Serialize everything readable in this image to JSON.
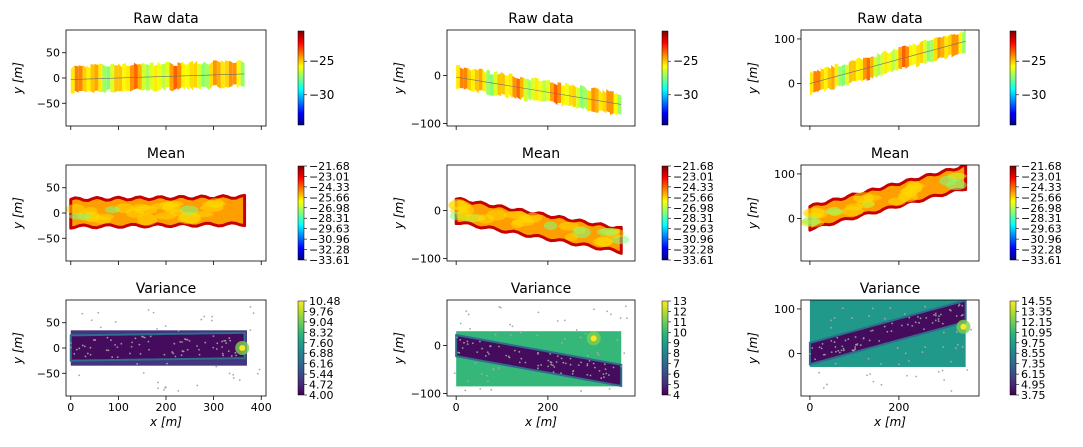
{
  "colors": {
    "jet": [
      "#00007f",
      "#0000ff",
      "#007fff",
      "#00ffff",
      "#7fff7f",
      "#ffff00",
      "#ff7f00",
      "#ff0000",
      "#7f0000"
    ],
    "viridis": [
      "#440154",
      "#482878",
      "#3e4989",
      "#31688e",
      "#26828e",
      "#1f9e89",
      "#35b779",
      "#6ece58",
      "#b5de2b",
      "#fde725"
    ],
    "axes": "#000000"
  },
  "chart_data": [
    {
      "type": "scatter",
      "row": "raw",
      "col": 0,
      "title": "Raw data",
      "xlabel": "",
      "ylabel": "y [m]",
      "xlim": [
        -10,
        410
      ],
      "ylim": [
        -95,
        95
      ],
      "xticks": [
        0,
        100,
        200,
        300,
        400
      ],
      "show_xticklabels": false,
      "yticks": [
        -50,
        0,
        50
      ],
      "ytick_labels": [
        "−50",
        "0",
        "50"
      ],
      "colormap": "jet",
      "clim": [
        -34.5,
        -20.5
      ],
      "colorbar_ticks": [
        -25,
        -30
      ],
      "colorbar_labels": [
        "−25",
        "−30"
      ],
      "track": {
        "x_start": 0,
        "x_end": 365,
        "center_start": -3,
        "center_end": 8,
        "half_width": 25
      },
      "field_value_min": -27.5,
      "field_value_max": -23.5
    },
    {
      "type": "scatter",
      "row": "raw",
      "col": 1,
      "title": "Raw data",
      "xlabel": "",
      "ylabel": "y [m]",
      "xlim": [
        -20,
        390
      ],
      "ylim": [
        -105,
        95
      ],
      "xticks": [
        0,
        200
      ],
      "show_xticklabels": false,
      "yticks": [
        -100,
        0
      ],
      "ytick_labels": [
        "−100",
        "0"
      ],
      "colormap": "jet",
      "clim": [
        -34.5,
        -20.5
      ],
      "colorbar_ticks": [
        -25,
        -30
      ],
      "colorbar_labels": [
        "−25",
        "−30"
      ],
      "track": {
        "x_start": 0,
        "x_end": 360,
        "center_start": -3,
        "center_end": -60,
        "half_width": 22
      },
      "field_value_min": -27.5,
      "field_value_max": -23.5
    },
    {
      "type": "scatter",
      "row": "raw",
      "col": 2,
      "title": "Raw data",
      "xlabel": "",
      "ylabel": "y [m]",
      "xlim": [
        -20,
        380
      ],
      "ylim": [
        -95,
        120
      ],
      "xticks": [
        0,
        200
      ],
      "show_xticklabels": false,
      "yticks": [
        0,
        100
      ],
      "ytick_labels": [
        "0",
        "100"
      ],
      "colormap": "jet",
      "clim": [
        -34.5,
        -20.5
      ],
      "colorbar_ticks": [
        -25,
        -30
      ],
      "colorbar_labels": [
        "−25",
        "−30"
      ],
      "track": {
        "x_start": 0,
        "x_end": 350,
        "center_start": 0,
        "center_end": 95,
        "half_width": 24
      },
      "field_value_min": -27.5,
      "field_value_max": -23.5
    },
    {
      "type": "heatmap",
      "row": "mean",
      "col": 0,
      "title": "Mean",
      "xlabel": "",
      "ylabel": "y [m]",
      "xlim": [
        -10,
        410
      ],
      "ylim": [
        -95,
        95
      ],
      "xticks": [
        0,
        100,
        200,
        300,
        400
      ],
      "show_xticklabels": false,
      "yticks": [
        -50,
        0,
        50
      ],
      "ytick_labels": [
        "−50",
        "0",
        "50"
      ],
      "colormap": "jet",
      "clim": [
        -33.61,
        -21.68
      ],
      "colorbar_ticks": [
        -21.68,
        -23.01,
        -24.33,
        -25.66,
        -26.98,
        -28.31,
        -29.63,
        -30.96,
        -32.28,
        -33.61
      ],
      "colorbar_labels": [
        "−21.68",
        "−23.01",
        "−24.33",
        "−25.66",
        "−26.98",
        "−28.31",
        "−29.63",
        "−30.96",
        "−32.28",
        "−33.61"
      ],
      "track": {
        "x_start": 0,
        "x_end": 365,
        "center_start": 0,
        "center_end": 5,
        "half_width": 27
      }
    },
    {
      "type": "heatmap",
      "row": "mean",
      "col": 1,
      "title": "Mean",
      "xlabel": "",
      "ylabel": "y [m]",
      "xlim": [
        -20,
        390
      ],
      "ylim": [
        -105,
        95
      ],
      "xticks": [
        0,
        200
      ],
      "show_xticklabels": false,
      "yticks": [
        -100,
        0
      ],
      "ytick_labels": [
        "−100",
        "0"
      ],
      "colormap": "jet",
      "clim": [
        -33.61,
        -21.68
      ],
      "colorbar_ticks": [
        -21.68,
        -23.01,
        -24.33,
        -25.66,
        -26.98,
        -28.31,
        -29.63,
        -30.96,
        -32.28,
        -33.61
      ],
      "colorbar_labels": [
        "−21.68",
        "−23.01",
        "−24.33",
        "−25.66",
        "−26.98",
        "−28.31",
        "−29.63",
        "−30.96",
        "−32.28",
        "−33.61"
      ],
      "track": {
        "x_start": 0,
        "x_end": 360,
        "center_start": 0,
        "center_end": -62,
        "half_width": 24
      }
    },
    {
      "type": "heatmap",
      "row": "mean",
      "col": 2,
      "title": "Mean",
      "xlabel": "",
      "ylabel": "y [m]",
      "xlim": [
        -20,
        380
      ],
      "ylim": [
        -95,
        120
      ],
      "xticks": [
        0,
        200
      ],
      "show_xticklabels": false,
      "yticks": [
        0,
        100
      ],
      "ytick_labels": [
        "0",
        "100"
      ],
      "colormap": "jet",
      "clim": [
        -33.61,
        -21.68
      ],
      "colorbar_ticks": [
        -21.68,
        -23.01,
        -24.33,
        -25.66,
        -26.98,
        -28.31,
        -29.63,
        -30.96,
        -32.28,
        -33.61
      ],
      "colorbar_labels": [
        "−21.68",
        "−23.01",
        "−24.33",
        "−25.66",
        "−26.98",
        "−28.31",
        "−29.63",
        "−30.96",
        "−32.28",
        "−33.61"
      ],
      "track": {
        "x_start": 0,
        "x_end": 350,
        "center_start": 2,
        "center_end": 93,
        "half_width": 25
      }
    },
    {
      "type": "heatmap",
      "row": "var",
      "col": 0,
      "title": "Variance",
      "xlabel": "x [m]",
      "ylabel": "y [m]",
      "xlim": [
        -10,
        410
      ],
      "ylim": [
        -95,
        95
      ],
      "xticks": [
        0,
        100,
        200,
        300,
        400
      ],
      "show_xticklabels": true,
      "xtick_labels": [
        "0",
        "100",
        "200",
        "300",
        "400"
      ],
      "yticks": [
        -50,
        0,
        50
      ],
      "ytick_labels": [
        "−50",
        "0",
        "50"
      ],
      "colormap": "viridis",
      "clim": [
        4.0,
        10.48
      ],
      "colorbar_ticks": [
        10.48,
        9.76,
        9.04,
        8.32,
        7.6,
        6.88,
        6.16,
        5.44,
        4.72,
        4.0
      ],
      "colorbar_labels": [
        "10.48",
        "9.76",
        "9.04",
        "8.32",
        "7.60",
        "6.88",
        "6.16",
        "5.44",
        "4.72",
        "4.00"
      ],
      "grid_extent": {
        "x": [
          0,
          370
        ],
        "y": [
          -35,
          35
        ]
      },
      "track": {
        "x_start": 0,
        "x_end": 365,
        "center_start": 0,
        "center_end": 5,
        "half_width": 25
      },
      "outside_value": 5.0,
      "hotspot": {
        "x": 360,
        "y": 0,
        "value": 10.48
      }
    },
    {
      "type": "heatmap",
      "row": "var",
      "col": 1,
      "title": "Variance",
      "xlabel": "x [m]",
      "ylabel": "y [m]",
      "xlim": [
        -20,
        390
      ],
      "ylim": [
        -105,
        95
      ],
      "xticks": [
        0,
        200
      ],
      "show_xticklabels": true,
      "xtick_labels": [
        "0",
        "200"
      ],
      "yticks": [
        -100,
        0
      ],
      "ytick_labels": [
        "−100",
        "0"
      ],
      "colormap": "viridis",
      "clim": [
        4,
        13
      ],
      "colorbar_ticks": [
        13,
        12,
        11,
        10,
        9,
        8,
        7,
        6,
        5,
        4
      ],
      "colorbar_labels": [
        "13",
        "12",
        "11",
        "10",
        "9",
        "8",
        "7",
        "6",
        "5",
        "4"
      ],
      "grid_extent": {
        "x": [
          0,
          360
        ],
        "y": [
          -85,
          30
        ]
      },
      "track": {
        "x_start": 0,
        "x_end": 360,
        "center_start": 0,
        "center_end": -62,
        "half_width": 22
      },
      "outside_value": 10.0,
      "hotspot": {
        "x": 300,
        "y": 15,
        "value": 13
      }
    },
    {
      "type": "heatmap",
      "row": "var",
      "col": 2,
      "title": "Variance",
      "xlabel": "x [m]",
      "ylabel": "y [m]",
      "xlim": [
        -20,
        380
      ],
      "ylim": [
        -95,
        120
      ],
      "xticks": [
        0,
        200
      ],
      "show_xticklabels": true,
      "xtick_labels": [
        "0",
        "200"
      ],
      "yticks": [
        0,
        100
      ],
      "ytick_labels": [
        "0",
        "100"
      ],
      "colormap": "viridis",
      "clim": [
        3.75,
        14.55
      ],
      "colorbar_ticks": [
        14.55,
        13.35,
        12.15,
        10.95,
        9.75,
        8.55,
        7.35,
        6.15,
        4.95,
        3.75
      ],
      "colorbar_labels": [
        "14.55",
        "13.35",
        "12.15",
        "10.95",
        "9.75",
        "8.55",
        "7.35",
        "6.15",
        "4.95",
        "3.75"
      ],
      "grid_extent": {
        "x": [
          0,
          350
        ],
        "y": [
          -30,
          120
        ]
      },
      "track": {
        "x_start": 0,
        "x_end": 350,
        "center_start": 0,
        "center_end": 95,
        "half_width": 24
      },
      "outside_value": 9.5,
      "hotspot": {
        "x": 345,
        "y": 60,
        "value": 14.55
      }
    }
  ]
}
